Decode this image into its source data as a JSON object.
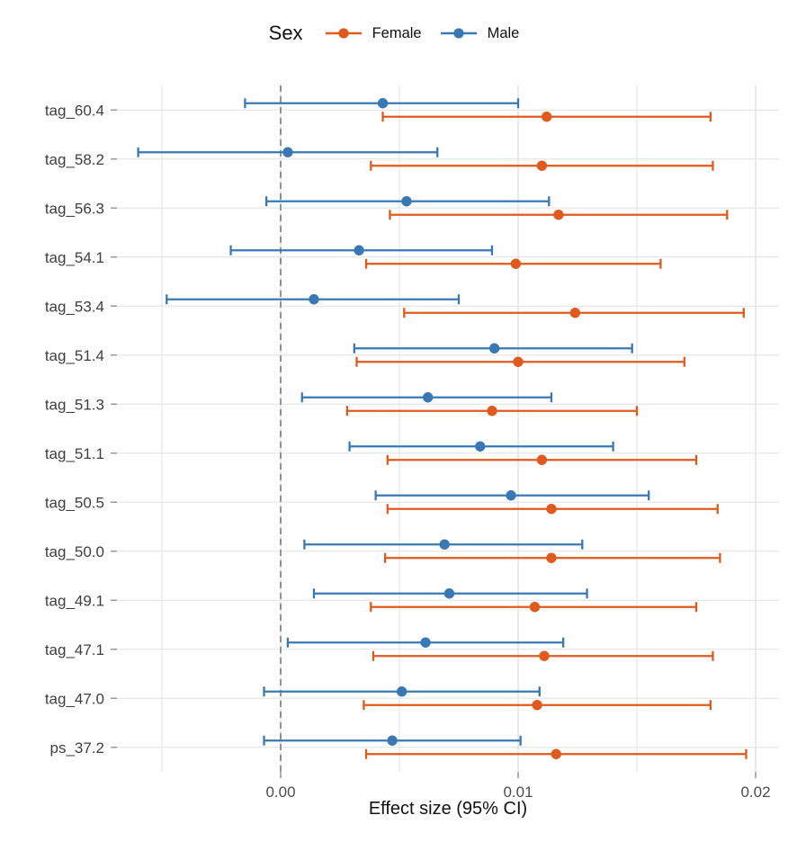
{
  "chart_data": {
    "type": "forest (dot + 95% CI error bars, horizontal)",
    "legend_title": "Sex",
    "xlabel": "Effect size (95% CI)",
    "categories": [
      "tag_60.4",
      "tag_58.2",
      "tag_56.3",
      "tag_54.1",
      "tag_53.4",
      "tag_51.4",
      "tag_51.3",
      "tag_51.1",
      "tag_50.5",
      "tag_50.0",
      "tag_49.1",
      "tag_47.1",
      "tag_47.0",
      "ps_37.2"
    ],
    "x_ticks": [
      {
        "value": 0.0,
        "label": "0.00"
      },
      {
        "value": 0.01,
        "label": "0.01"
      },
      {
        "value": 0.02,
        "label": "0.02"
      }
    ],
    "x_minor_gridlines": [
      -0.005,
      0.005,
      0.015
    ],
    "xlim": [
      -0.0069,
      0.021
    ],
    "zero_reference_line": 0.0,
    "grid": true,
    "legend_position": "top",
    "series": [
      {
        "name": "Female",
        "color": "#E05A1E",
        "row_in_band": "bottom",
        "values": [
          {
            "est": 0.0112,
            "lo": 0.0043,
            "hi": 0.0181
          },
          {
            "est": 0.011,
            "lo": 0.0038,
            "hi": 0.0182
          },
          {
            "est": 0.0117,
            "lo": 0.0046,
            "hi": 0.0188
          },
          {
            "est": 0.0099,
            "lo": 0.0036,
            "hi": 0.016
          },
          {
            "est": 0.0124,
            "lo": 0.0052,
            "hi": 0.0195
          },
          {
            "est": 0.01,
            "lo": 0.0032,
            "hi": 0.017
          },
          {
            "est": 0.0089,
            "lo": 0.0028,
            "hi": 0.015
          },
          {
            "est": 0.011,
            "lo": 0.0045,
            "hi": 0.0175
          },
          {
            "est": 0.0114,
            "lo": 0.0045,
            "hi": 0.0184
          },
          {
            "est": 0.0114,
            "lo": 0.0044,
            "hi": 0.0185
          },
          {
            "est": 0.0107,
            "lo": 0.0038,
            "hi": 0.0175
          },
          {
            "est": 0.0111,
            "lo": 0.0039,
            "hi": 0.0182
          },
          {
            "est": 0.0108,
            "lo": 0.0035,
            "hi": 0.0181
          },
          {
            "est": 0.0116,
            "lo": 0.0036,
            "hi": 0.0196
          }
        ]
      },
      {
        "name": "Male",
        "color": "#3879B5",
        "row_in_band": "top",
        "values": [
          {
            "est": 0.0043,
            "lo": -0.0015,
            "hi": 0.01
          },
          {
            "est": 0.0003,
            "lo": -0.006,
            "hi": 0.0066
          },
          {
            "est": 0.0053,
            "lo": -0.0006,
            "hi": 0.0113
          },
          {
            "est": 0.0033,
            "lo": -0.0021,
            "hi": 0.0089
          },
          {
            "est": 0.0014,
            "lo": -0.0048,
            "hi": 0.0075
          },
          {
            "est": 0.009,
            "lo": 0.0031,
            "hi": 0.0148
          },
          {
            "est": 0.0062,
            "lo": 0.0009,
            "hi": 0.0114
          },
          {
            "est": 0.0084,
            "lo": 0.0029,
            "hi": 0.014
          },
          {
            "est": 0.0097,
            "lo": 0.004,
            "hi": 0.0155
          },
          {
            "est": 0.0069,
            "lo": 0.001,
            "hi": 0.0127
          },
          {
            "est": 0.0071,
            "lo": 0.0014,
            "hi": 0.0129
          },
          {
            "est": 0.0061,
            "lo": 0.0003,
            "hi": 0.0119
          },
          {
            "est": 0.0051,
            "lo": -0.0007,
            "hi": 0.0109
          },
          {
            "est": 0.0047,
            "lo": -0.0007,
            "hi": 0.0101
          }
        ]
      }
    ]
  }
}
